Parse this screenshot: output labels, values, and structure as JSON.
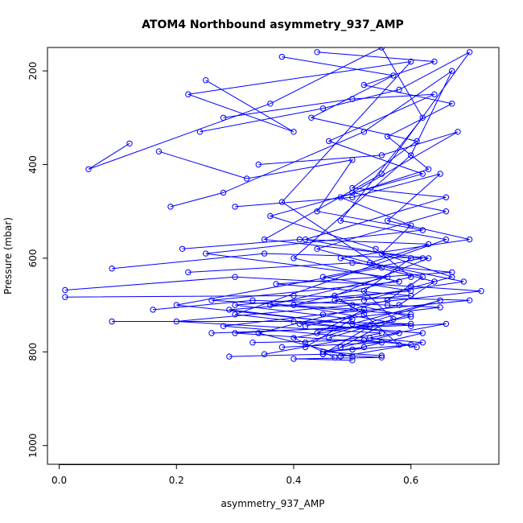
{
  "chart_data": {
    "type": "line",
    "title": "ATOM4 Northbound asymmetry_937_AMP",
    "xlabel": "asymmetry_937_AMP",
    "ylabel": "Pressure (mbar)",
    "xlim": [
      -0.02,
      0.75
    ],
    "ylim": [
      1040,
      150
    ],
    "y_inverted": true,
    "x_ticks": [
      0.0,
      0.2,
      0.4,
      0.6
    ],
    "x_tick_labels": [
      "0.0",
      "0.2",
      "0.4",
      "0.6"
    ],
    "y_ticks": [
      200,
      400,
      600,
      800,
      1000
    ],
    "y_tick_labels": [
      "200",
      "400",
      "600",
      "800",
      "1000"
    ],
    "grid": false,
    "legend": "none",
    "series_color": "#0000ff",
    "marker": "open-circle",
    "series": [
      {
        "values": [
          [
            0.12,
            355
          ],
          [
            0.05,
            410
          ],
          [
            0.36,
            270
          ],
          [
            0.55,
            150
          ],
          [
            0.62,
            300
          ],
          [
            0.48,
            520
          ],
          [
            0.66,
            560
          ],
          [
            0.3,
            720
          ],
          [
            0.58,
            760
          ],
          [
            0.45,
            800
          ],
          [
            0.52,
            790
          ]
        ]
      },
      {
        "values": [
          [
            0.25,
            220
          ],
          [
            0.4,
            330
          ],
          [
            0.22,
            250
          ],
          [
            0.6,
            180
          ],
          [
            0.38,
            480
          ],
          [
            0.55,
            620
          ],
          [
            0.2,
            700
          ],
          [
            0.5,
            740
          ],
          [
            0.65,
            690
          ],
          [
            0.42,
            780
          ]
        ]
      },
      {
        "values": [
          [
            0.01,
            668
          ],
          [
            0.3,
            640
          ],
          [
            0.6,
            660
          ],
          [
            0.72,
            670
          ],
          [
            0.5,
            700
          ],
          [
            0.2,
            735
          ],
          [
            0.55,
            760
          ],
          [
            0.35,
            805
          ]
        ]
      },
      {
        "values": [
          [
            0.01,
            683
          ],
          [
            0.4,
            680
          ],
          [
            0.7,
            690
          ],
          [
            0.45,
            720
          ],
          [
            0.28,
            745
          ],
          [
            0.62,
            780
          ],
          [
            0.48,
            810
          ]
        ]
      },
      {
        "values": [
          [
            0.09,
            622
          ],
          [
            0.35,
            590
          ],
          [
            0.62,
            600
          ],
          [
            0.45,
            640
          ],
          [
            0.6,
            670
          ],
          [
            0.3,
            700
          ],
          [
            0.5,
            730
          ],
          [
            0.42,
            790
          ]
        ]
      },
      {
        "values": [
          [
            0.09,
            735
          ],
          [
            0.4,
            735
          ],
          [
            0.6,
            740
          ],
          [
            0.3,
            760
          ],
          [
            0.55,
            780
          ],
          [
            0.38,
            790
          ]
        ]
      },
      {
        "values": [
          [
            0.17,
            372
          ],
          [
            0.32,
            430
          ],
          [
            0.5,
            390
          ],
          [
            0.44,
            500
          ],
          [
            0.62,
            540
          ],
          [
            0.25,
            590
          ],
          [
            0.56,
            640
          ],
          [
            0.36,
            700
          ],
          [
            0.6,
            720
          ],
          [
            0.46,
            770
          ]
        ]
      },
      {
        "values": [
          [
            0.19,
            490
          ],
          [
            0.28,
            460
          ],
          [
            0.52,
            330
          ],
          [
            0.67,
            200
          ],
          [
            0.6,
            380
          ],
          [
            0.4,
            600
          ],
          [
            0.58,
            650
          ],
          [
            0.26,
            690
          ],
          [
            0.52,
            710
          ],
          [
            0.44,
            760
          ]
        ]
      },
      {
        "values": [
          [
            0.24,
            330
          ],
          [
            0.45,
            280
          ],
          [
            0.58,
            240
          ],
          [
            0.7,
            160
          ],
          [
            0.55,
            420
          ],
          [
            0.35,
            560
          ],
          [
            0.63,
            600
          ],
          [
            0.47,
            680
          ],
          [
            0.52,
            720
          ],
          [
            0.58,
            785
          ]
        ]
      },
      {
        "values": [
          [
            0.16,
            710
          ],
          [
            0.33,
            690
          ],
          [
            0.56,
            700
          ],
          [
            0.65,
            705
          ],
          [
            0.41,
            740
          ],
          [
            0.62,
            760
          ],
          [
            0.5,
            795
          ]
        ]
      },
      {
        "values": [
          [
            0.22,
            630
          ],
          [
            0.5,
            610
          ],
          [
            0.67,
            630
          ],
          [
            0.37,
            655
          ],
          [
            0.6,
            680
          ],
          [
            0.29,
            710
          ],
          [
            0.53,
            745
          ],
          [
            0.45,
            805
          ]
        ]
      },
      {
        "values": [
          [
            0.38,
            170
          ],
          [
            0.57,
            210
          ],
          [
            0.43,
            300
          ],
          [
            0.61,
            350
          ],
          [
            0.5,
            450
          ],
          [
            0.66,
            470
          ],
          [
            0.42,
            560
          ],
          [
            0.6,
            600
          ],
          [
            0.52,
            670
          ],
          [
            0.57,
            730
          ],
          [
            0.48,
            790
          ]
        ]
      },
      {
        "values": [
          [
            0.28,
            300
          ],
          [
            0.5,
            260
          ],
          [
            0.64,
            250
          ],
          [
            0.46,
            350
          ],
          [
            0.62,
            420
          ],
          [
            0.36,
            510
          ],
          [
            0.54,
            580
          ],
          [
            0.6,
            640
          ],
          [
            0.4,
            700
          ],
          [
            0.6,
            745
          ]
        ]
      },
      {
        "values": [
          [
            0.34,
            400
          ],
          [
            0.55,
            380
          ],
          [
            0.68,
            330
          ],
          [
            0.5,
            460
          ],
          [
            0.66,
            500
          ],
          [
            0.44,
            580
          ],
          [
            0.62,
            640
          ],
          [
            0.56,
            690
          ],
          [
            0.34,
            760
          ],
          [
            0.5,
            810
          ]
        ]
      },
      {
        "values": [
          [
            0.21,
            580
          ],
          [
            0.41,
            560
          ],
          [
            0.63,
            570
          ],
          [
            0.53,
            610
          ],
          [
            0.69,
            650
          ],
          [
            0.47,
            690
          ],
          [
            0.6,
            725
          ],
          [
            0.4,
            770
          ],
          [
            0.47,
            812
          ]
        ]
      },
      {
        "values": [
          [
            0.3,
            490
          ],
          [
            0.5,
            470
          ],
          [
            0.65,
            420
          ],
          [
            0.56,
            520
          ],
          [
            0.7,
            560
          ],
          [
            0.48,
            600
          ],
          [
            0.64,
            650
          ],
          [
            0.58,
            700
          ],
          [
            0.42,
            745
          ]
        ]
      },
      {
        "values": [
          [
            0.44,
            160
          ],
          [
            0.64,
            180
          ],
          [
            0.52,
            230
          ],
          [
            0.67,
            270
          ],
          [
            0.56,
            340
          ],
          [
            0.63,
            410
          ],
          [
            0.48,
            470
          ],
          [
            0.6,
            530
          ],
          [
            0.55,
            590
          ],
          [
            0.67,
            640
          ],
          [
            0.52,
            690
          ]
        ]
      },
      {
        "values": [
          [
            0.33,
            780
          ],
          [
            0.52,
            775
          ],
          [
            0.6,
            785
          ],
          [
            0.45,
            800
          ],
          [
            0.55,
            808
          ]
        ]
      },
      {
        "values": [
          [
            0.29,
            810
          ],
          [
            0.45,
            805
          ],
          [
            0.55,
            812
          ],
          [
            0.4,
            815
          ],
          [
            0.5,
            818
          ]
        ]
      },
      {
        "values": [
          [
            0.26,
            760
          ],
          [
            0.47,
            750
          ],
          [
            0.66,
            740
          ],
          [
            0.53,
            770
          ],
          [
            0.61,
            790
          ]
        ]
      }
    ]
  }
}
